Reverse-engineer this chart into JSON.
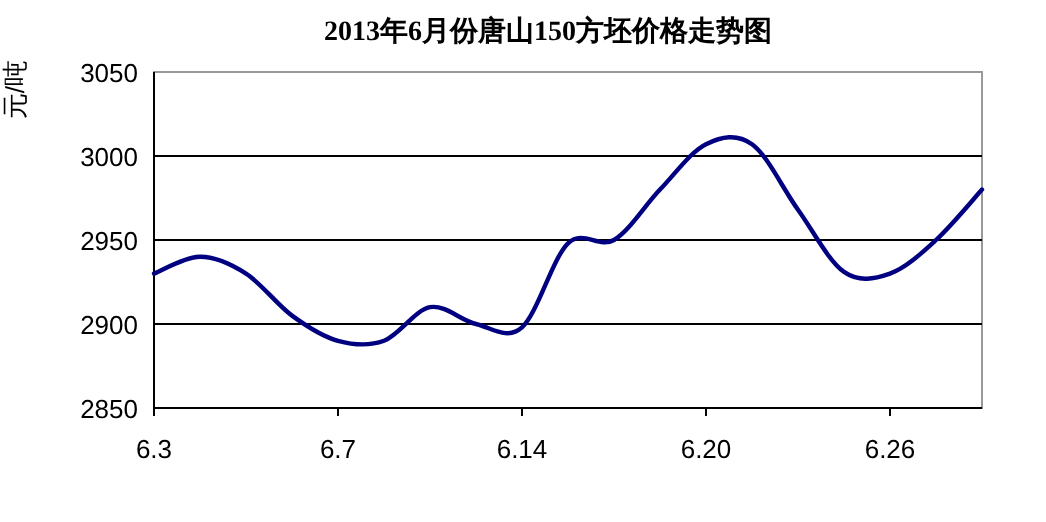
{
  "chart_data": {
    "type": "line",
    "title": "2013年6月份唐山150方坯价格走势图",
    "ylabel": "元/吨",
    "categories": [
      "6.3",
      null,
      null,
      null,
      "6.7",
      null,
      null,
      null,
      "6.14",
      null,
      null,
      null,
      "6.20",
      null,
      null,
      null,
      "6.26",
      null,
      null
    ],
    "values": [
      2930,
      2940,
      2930,
      2905,
      2890,
      2890,
      2910,
      2900,
      2898,
      2948,
      2950,
      2980,
      3007,
      3007,
      2968,
      2931,
      2930,
      2950,
      2980
    ],
    "color": "#000080",
    "ylim": [
      2850,
      3050
    ],
    "yticks": [
      2850,
      2900,
      2950,
      3000,
      3050
    ],
    "grid": "y"
  }
}
